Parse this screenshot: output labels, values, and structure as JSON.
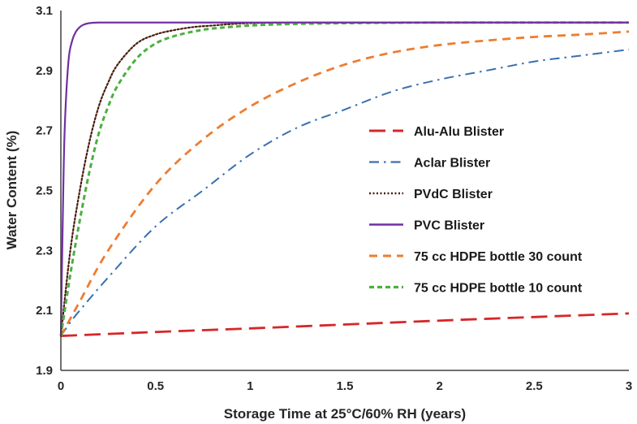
{
  "chart_data": {
    "type": "line",
    "title": "",
    "xlabel": "Storage Time at 25°C/60% RH (years)",
    "ylabel": "Water Content (%)",
    "xlim": [
      0,
      3
    ],
    "ylim": [
      1.9,
      3.1
    ],
    "x_ticks": [
      "0",
      "0.5",
      "1",
      "1.5",
      "2",
      "2.5",
      "3"
    ],
    "y_ticks": [
      "1.9",
      "2.1",
      "2.3",
      "2.5",
      "2.7",
      "2.9",
      "3.1"
    ],
    "grid": false,
    "legend_position": "right",
    "series": [
      {
        "name": "Alu-Alu Blister",
        "color": "#d62728",
        "dash": "long-dash",
        "x": [
          0,
          0.5,
          1,
          1.5,
          2,
          2.5,
          3
        ],
        "values": [
          2.015,
          2.028,
          2.04,
          2.053,
          2.066,
          2.078,
          2.09
        ]
      },
      {
        "name": "Aclar Blister",
        "color": "#3a6fb0",
        "dash": "dash-dot",
        "x": [
          0,
          0.05,
          0.1,
          0.25,
          0.5,
          0.75,
          1,
          1.25,
          1.5,
          1.75,
          2,
          2.25,
          2.5,
          2.75,
          3
        ],
        "values": [
          2.015,
          2.06,
          2.1,
          2.21,
          2.38,
          2.5,
          2.62,
          2.71,
          2.77,
          2.83,
          2.87,
          2.9,
          2.93,
          2.95,
          2.97
        ]
      },
      {
        "name": "PVdC Blister",
        "color": "#4a1c10",
        "dash": "dotted",
        "x": [
          0,
          0.05,
          0.1,
          0.15,
          0.2,
          0.25,
          0.3,
          0.4,
          0.5,
          0.6,
          0.7,
          0.8,
          0.9,
          1,
          1.2,
          1.5,
          2,
          3
        ],
        "values": [
          2.015,
          2.3,
          2.5,
          2.66,
          2.78,
          2.86,
          2.92,
          2.99,
          3.02,
          3.035,
          3.045,
          3.05,
          3.055,
          3.058,
          3.06,
          3.06,
          3.06,
          3.06
        ]
      },
      {
        "name": "PVC Blister",
        "color": "#7030a0",
        "dash": "solid",
        "x": [
          0,
          0.01,
          0.02,
          0.04,
          0.06,
          0.08,
          0.1,
          0.12,
          0.15,
          0.2,
          0.3,
          0.5,
          1,
          2,
          3
        ],
        "values": [
          2.015,
          2.4,
          2.7,
          2.93,
          3.0,
          3.03,
          3.045,
          3.053,
          3.058,
          3.06,
          3.06,
          3.06,
          3.06,
          3.06,
          3.06
        ]
      },
      {
        "name": "75 cc HDPE bottle 30 count",
        "color": "#ed7d31",
        "dash": "dashed",
        "x": [
          0,
          0.1,
          0.25,
          0.5,
          0.75,
          1,
          1.25,
          1.5,
          1.75,
          2,
          2.25,
          2.5,
          2.75,
          3
        ],
        "values": [
          2.015,
          2.13,
          2.3,
          2.52,
          2.67,
          2.78,
          2.86,
          2.92,
          2.96,
          2.985,
          3.0,
          3.012,
          3.02,
          3.03
        ]
      },
      {
        "name": "75 cc HDPE bottle 10 count",
        "color": "#4caf3f",
        "dash": "short-dash",
        "x": [
          0,
          0.05,
          0.1,
          0.15,
          0.2,
          0.25,
          0.3,
          0.4,
          0.5,
          0.6,
          0.7,
          0.8,
          1,
          1.2,
          1.5,
          2,
          3
        ],
        "values": [
          2.015,
          2.22,
          2.4,
          2.56,
          2.69,
          2.78,
          2.85,
          2.94,
          2.99,
          3.015,
          3.03,
          3.04,
          3.05,
          3.055,
          3.058,
          3.06,
          3.06
        ]
      }
    ]
  }
}
